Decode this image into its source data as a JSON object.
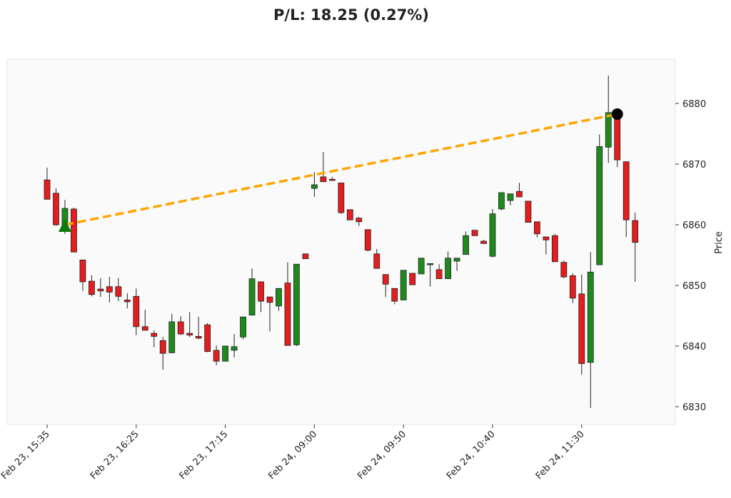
{
  "chart_data": {
    "type": "candlestick",
    "title": "P/L: 18.25 (0.27%)",
    "y_label": "Price",
    "categories": [
      "Feb 23, 15:35",
      null,
      null,
      null,
      null,
      null,
      null,
      null,
      null,
      null,
      "Feb 23, 16:25",
      null,
      null,
      null,
      null,
      null,
      null,
      null,
      null,
      null,
      "Feb 23, 17:15",
      null,
      null,
      null,
      null,
      null,
      null,
      null,
      null,
      null,
      "Feb 24, 09:00",
      null,
      null,
      null,
      null,
      null,
      null,
      null,
      null,
      null,
      "Feb 24, 09:50",
      null,
      null,
      null,
      null,
      null,
      null,
      null,
      null,
      null,
      "Feb 24, 10:40",
      null,
      null,
      null,
      null,
      null,
      null,
      null,
      null,
      null,
      "Feb 24, 11:30",
      null,
      null,
      null,
      null,
      null,
      null
    ],
    "open": [
      6867.4,
      6865.2,
      6860.0,
      6862.6,
      6854.2,
      6850.7,
      6849.4,
      6849.8,
      6849.8,
      6847.6,
      6848.2,
      6843.2,
      6842.1,
      6840.9,
      6838.9,
      6844.0,
      6842.1,
      6841.6,
      6843.5,
      6839.3,
      6837.5,
      6839.3,
      6841.5,
      6845.1,
      6850.6,
      6848.1,
      6846.6,
      6850.4,
      6840.2,
      6855.2,
      6866.0,
      6867.9,
      6867.5,
      6866.9,
      6862.5,
      6861.1,
      6859.2,
      6855.2,
      6851.8,
      6849.5,
      6847.6,
      6852.0,
      6851.9,
      6853.4,
      6852.6,
      6851.1,
      6854.0,
      6855.1,
      6859.1,
      6857.3,
      6854.8,
      6862.6,
      6864.0,
      6865.5,
      6863.9,
      6860.5,
      6858.0,
      6858.2,
      6853.8,
      6851.6,
      6848.6,
      6837.3,
      6853.4,
      6872.8,
      6878.0,
      6870.4,
      6860.7
    ],
    "high": [
      6869.4,
      6866.0,
      6864.1,
      6862.8,
      6854.2,
      6851.7,
      6851.2,
      6851.4,
      6851.2,
      6848.7,
      6849.5,
      6846.0,
      6842.6,
      6841.5,
      6845.3,
      6844.9,
      6845.6,
      6844.8,
      6843.8,
      6840.1,
      6840.0,
      6842.0,
      6844.8,
      6852.8,
      6850.6,
      6848.1,
      6849.5,
      6853.8,
      6853.5,
      6855.2,
      6868.7,
      6872.0,
      6867.9,
      6866.9,
      6862.5,
      6861.3,
      6859.2,
      6856.0,
      6851.8,
      6849.5,
      6852.5,
      6852.0,
      6854.5,
      6853.6,
      6853.5,
      6855.6,
      6854.5,
      6858.9,
      6859.1,
      6857.5,
      6862.6,
      6865.3,
      6865.1,
      6866.9,
      6863.9,
      6860.5,
      6858.0,
      6858.5,
      6854.1,
      6852.0,
      6851.8,
      6855.5,
      6874.9,
      6884.6,
      6878.5,
      6870.4,
      6862.0
    ],
    "low": [
      6864.2,
      6859.8,
      6858.5,
      6855.5,
      6849.1,
      6848.2,
      6848.1,
      6847.2,
      6847.4,
      6846.2,
      6841.8,
      6842.6,
      6839.8,
      6836.1,
      6838.8,
      6841.8,
      6841.5,
      6841.1,
      6839.0,
      6836.8,
      6837.5,
      6838.1,
      6841.1,
      6845.1,
      6845.6,
      6842.4,
      6845.8,
      6840.1,
      6840.0,
      6854.4,
      6864.6,
      6867.1,
      6867.3,
      6861.8,
      6860.8,
      6859.8,
      6855.6,
      6852.8,
      6848.1,
      6846.9,
      6847.6,
      6850.1,
      6851.9,
      6849.8,
      6851.1,
      6851.1,
      6852.4,
      6855.1,
      6858.2,
      6856.9,
      6854.6,
      6862.4,
      6863.2,
      6864.6,
      6860.4,
      6857.9,
      6855.1,
      6853.9,
      6851.2,
      6847.1,
      6835.3,
      6829.8,
      6853.4,
      6870.2,
      6869.5,
      6858.0,
      6850.6
    ],
    "close": [
      6864.2,
      6860.0,
      6862.7,
      6855.5,
      6850.6,
      6848.5,
      6849.1,
      6848.9,
      6848.2,
      6847.3,
      6843.2,
      6842.6,
      6841.6,
      6838.8,
      6844.0,
      6842.0,
      6841.8,
      6841.3,
      6839.1,
      6837.5,
      6840.0,
      6839.9,
      6844.8,
      6851.1,
      6847.4,
      6847.2,
      6849.5,
      6840.1,
      6853.5,
      6854.4,
      6866.6,
      6867.1,
      6867.3,
      6862.0,
      6860.8,
      6860.5,
      6855.8,
      6852.8,
      6850.2,
      6847.4,
      6852.5,
      6850.1,
      6854.5,
      6853.6,
      6851.1,
      6854.5,
      6854.5,
      6858.2,
      6858.2,
      6856.9,
      6861.8,
      6865.3,
      6865.1,
      6864.6,
      6860.4,
      6858.5,
      6857.5,
      6853.9,
      6851.4,
      6847.9,
      6837.1,
      6852.2,
      6872.9,
      6878.5,
      6870.7,
      6860.8,
      6857.1
    ],
    "up_color": "#1e8a1e",
    "down_color": "#e41e1e",
    "trade": {
      "entry_index": 2,
      "entry_price": 6860.0,
      "exit_index": 64,
      "exit_price": 6878.25,
      "color": "#ffa500"
    },
    "ylim": [
      6827.06,
      6887.3
    ],
    "yticks": [
      6830,
      6840,
      6850,
      6860,
      6870,
      6880
    ]
  }
}
